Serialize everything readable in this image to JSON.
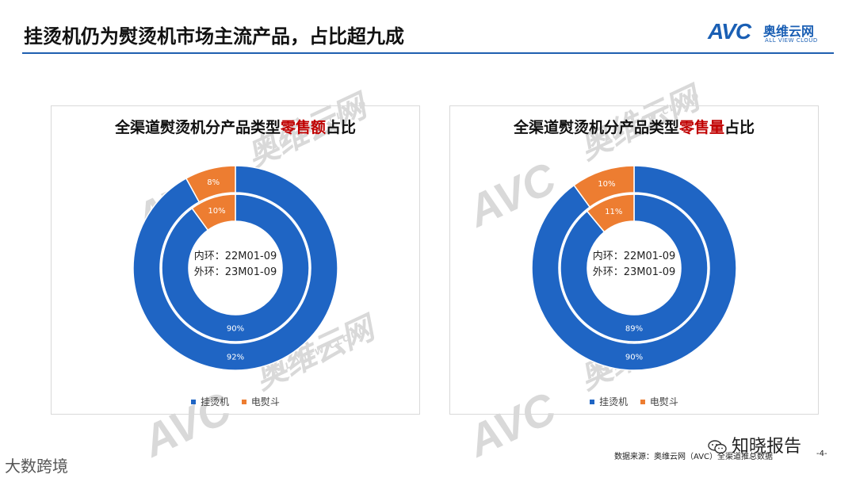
{
  "header": {
    "title": "挂烫机仍为熨烫机市场主流产品，占比超九成",
    "logo_mark": "AVC",
    "logo_cn": "奥维云网",
    "logo_en": "ALL VIEW CLOUD"
  },
  "watermark": {
    "mark": "AVC",
    "cn": "奥维云网",
    "en": "ALL VIEW CLOUD"
  },
  "colors": {
    "primary": "#1f5fb0",
    "series_blue": "#1f65c4",
    "series_orange": "#ed7d31",
    "highlight_red": "#c00000"
  },
  "chart_data": [
    {
      "type": "pie",
      "title_prefix": "全渠道熨烫机分产品类型",
      "title_highlight": "零售额",
      "title_suffix": "占比",
      "center_label_line1": "内环：22M01-09",
      "center_label_line2": "外环：23M01-09",
      "categories": [
        "挂烫机",
        "电熨斗"
      ],
      "rings": [
        {
          "name": "内环",
          "period": "22M01-09",
          "values": [
            90,
            10
          ],
          "labels": [
            "90%",
            "10%"
          ]
        },
        {
          "name": "外环",
          "period": "23M01-09",
          "values": [
            92,
            8
          ],
          "labels": [
            "92%",
            "8%"
          ]
        }
      ],
      "legend": [
        "挂烫机",
        "电熨斗"
      ],
      "legend_position": "bottom"
    },
    {
      "type": "pie",
      "title_prefix": "全渠道熨烫机分产品类型",
      "title_highlight": "零售量",
      "title_suffix": "占比",
      "center_label_line1": "内环：22M01-09",
      "center_label_line2": "外环：23M01-09",
      "categories": [
        "挂烫机",
        "电熨斗"
      ],
      "rings": [
        {
          "name": "内环",
          "period": "22M01-09",
          "values": [
            89,
            11
          ],
          "labels": [
            "89%",
            "11%"
          ]
        },
        {
          "name": "外环",
          "period": "23M01-09",
          "values": [
            90,
            10
          ],
          "labels": [
            "90%",
            "10%"
          ]
        }
      ],
      "legend": [
        "挂烫机",
        "电熨斗"
      ],
      "legend_position": "bottom"
    }
  ],
  "footer": {
    "source": "数据来源：奥维云网（AVC）全渠道推总数据",
    "page_number": "-4-",
    "wechat_text": "知晓报告",
    "bottom_watermark": "大数跨境"
  }
}
